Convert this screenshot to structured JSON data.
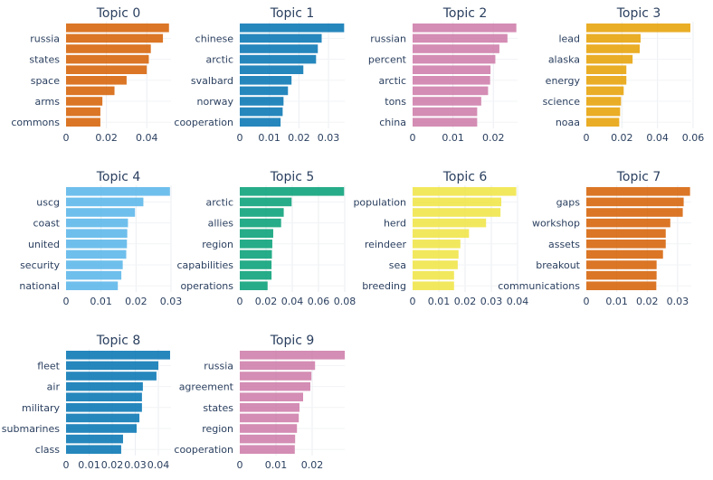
{
  "chart_data": [
    {
      "type": "bar",
      "orientation": "horizontal",
      "title": "Topic 0",
      "color": "#D55E00",
      "xlim": [
        0,
        0.052
      ],
      "xticks": [
        0,
        0.02,
        0.04
      ],
      "xtick_labels": [
        "0",
        "0.02",
        "0.04"
      ],
      "ytick_labels": [
        "russia",
        "states",
        "space",
        "arms",
        "commons"
      ],
      "values": [
        0.051,
        0.048,
        0.042,
        0.041,
        0.04,
        0.03,
        0.024,
        0.018,
        0.017,
        0.017
      ],
      "grid": true
    },
    {
      "type": "bar",
      "orientation": "horizontal",
      "title": "Topic 1",
      "color": "#0072B2",
      "xlim": [
        0,
        0.0355
      ],
      "xticks": [
        0,
        0.01,
        0.02,
        0.03
      ],
      "xtick_labels": [
        "0",
        "0.01",
        "0.02",
        "0.03"
      ],
      "ytick_labels": [
        "chinese",
        "arctic",
        "svalbard",
        "norway",
        "cooperation"
      ],
      "values": [
        0.0353,
        0.0277,
        0.0264,
        0.0258,
        0.0215,
        0.0175,
        0.0163,
        0.0148,
        0.0145,
        0.0138
      ],
      "grid": true
    },
    {
      "type": "bar",
      "orientation": "horizontal",
      "title": "Topic 2",
      "color": "#CC79A7",
      "xlim": [
        0,
        0.026
      ],
      "xticks": [
        0,
        0.01,
        0.02
      ],
      "xtick_labels": [
        "0",
        "0.01",
        "0.02"
      ],
      "ytick_labels": [
        "russian",
        "percent",
        "arctic",
        "tons",
        "china"
      ],
      "values": [
        0.0257,
        0.0235,
        0.0215,
        0.0205,
        0.0193,
        0.0192,
        0.0187,
        0.017,
        0.016,
        0.016
      ],
      "grid": true
    },
    {
      "type": "bar",
      "orientation": "horizontal",
      "title": "Topic 3",
      "color": "#E69F00",
      "xlim": [
        0,
        0.059
      ],
      "xticks": [
        0,
        0.02,
        0.04,
        0.06
      ],
      "xtick_labels": [
        "0",
        "0.02",
        "0.04",
        "0.06"
      ],
      "ytick_labels": [
        "lead",
        "alaska",
        "energy",
        "science",
        "noaa"
      ],
      "values": [
        0.0585,
        0.0305,
        0.03,
        0.026,
        0.0225,
        0.0225,
        0.021,
        0.0195,
        0.019,
        0.0185
      ],
      "grid": true
    },
    {
      "type": "bar",
      "orientation": "horizontal",
      "title": "Topic 4",
      "color": "#56B4E9",
      "xlim": [
        0,
        0.03
      ],
      "xticks": [
        0,
        0.01,
        0.02,
        0.03
      ],
      "xtick_labels": [
        "0",
        "0.01",
        "0.02",
        "0.03"
      ],
      "ytick_labels": [
        "uscg",
        "coast",
        "united",
        "security",
        "national"
      ],
      "values": [
        0.0297,
        0.0221,
        0.0197,
        0.0177,
        0.0175,
        0.0174,
        0.0172,
        0.0162,
        0.0158,
        0.0148
      ],
      "grid": true
    },
    {
      "type": "bar",
      "orientation": "horizontal",
      "title": "Topic 5",
      "color": "#009E73",
      "xlim": [
        0,
        0.08
      ],
      "xticks": [
        0,
        0.02,
        0.04,
        0.06,
        0.08
      ],
      "xtick_labels": [
        "0",
        "0.02",
        "0.04",
        "0.06",
        "0.08"
      ],
      "ytick_labels": [
        "arctic",
        "allies",
        "region",
        "capabilities",
        "operations"
      ],
      "values": [
        0.0795,
        0.0395,
        0.0335,
        0.0315,
        0.0255,
        0.0248,
        0.0245,
        0.0242,
        0.0242,
        0.0212
      ],
      "grid": true
    },
    {
      "type": "bar",
      "orientation": "horizontal",
      "title": "Topic 6",
      "color": "#F0E442",
      "xlim": [
        0,
        0.04
      ],
      "xticks": [
        0,
        0.01,
        0.02,
        0.03,
        0.04
      ],
      "xtick_labels": [
        "0",
        "0.01",
        "0.02",
        "0.03",
        "0.04"
      ],
      "ytick_labels": [
        "population",
        "herd",
        "reindeer",
        "sea",
        "breeding"
      ],
      "values": [
        0.0395,
        0.0338,
        0.0335,
        0.028,
        0.0215,
        0.0182,
        0.0175,
        0.0172,
        0.0158,
        0.0158
      ],
      "grid": true
    },
    {
      "type": "bar",
      "orientation": "horizontal",
      "title": "Topic 7",
      "color": "#D55E00",
      "xlim": [
        0,
        0.0345
      ],
      "xticks": [
        0,
        0.01,
        0.02,
        0.03
      ],
      "xtick_labels": [
        "0",
        "0.01",
        "0.02",
        "0.03"
      ],
      "ytick_labels": [
        "gaps",
        "workshop",
        "assets",
        "breakout",
        "communications"
      ],
      "values": [
        0.0341,
        0.032,
        0.0317,
        0.0276,
        0.0261,
        0.0261,
        0.0252,
        0.0231,
        0.0231,
        0.023
      ],
      "grid": true
    },
    {
      "type": "bar",
      "orientation": "horizontal",
      "title": "Topic 8",
      "color": "#0072B2",
      "xlim": [
        0,
        0.0455
      ],
      "xticks": [
        0,
        0.01,
        0.02,
        0.03,
        0.04
      ],
      "xtick_labels": [
        "0",
        "0.01",
        "0.02",
        "0.03",
        "0.04"
      ],
      "ytick_labels": [
        "fleet",
        "air",
        "military",
        "submarines",
        "class"
      ],
      "values": [
        0.0451,
        0.04,
        0.0392,
        0.0333,
        0.0329,
        0.0329,
        0.0318,
        0.0306,
        0.0247,
        0.0239
      ],
      "grid": true
    },
    {
      "type": "bar",
      "orientation": "horizontal",
      "title": "Topic 9",
      "color": "#CC79A7",
      "xlim": [
        0,
        0.029
      ],
      "xticks": [
        0,
        0.01,
        0.02
      ],
      "xtick_labels": [
        "0",
        "0.01",
        "0.02"
      ],
      "ytick_labels": [
        "russia",
        "agreement",
        "states",
        "region",
        "cooperation"
      ],
      "values": [
        0.029,
        0.0208,
        0.0198,
        0.0195,
        0.0175,
        0.0165,
        0.0163,
        0.0158,
        0.0153,
        0.0152
      ],
      "grid": true
    }
  ]
}
